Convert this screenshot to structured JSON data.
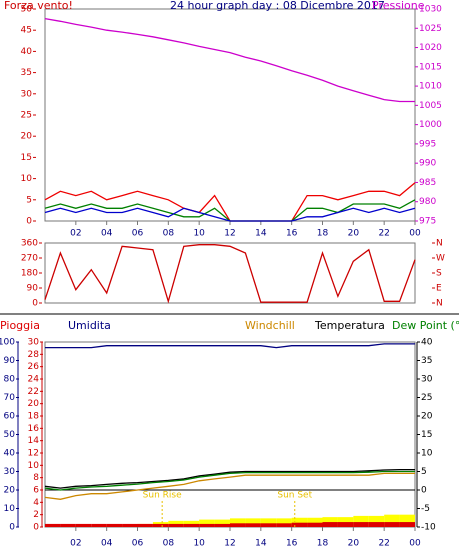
{
  "chart_data": [
    {
      "type": "line",
      "title": "24 hour graph day : 08 Dicembre 2017",
      "ylabel": "Forza vento!",
      "y2label": "Pressione",
      "ylabel_color": "#cc0000",
      "title_color": "#000080",
      "y2label_color": "#cc00cc",
      "ytick_color": "#cc0000",
      "y2tick_color": "#cc00cc",
      "xtick_color": "#000080",
      "x": [
        0,
        1,
        2,
        3,
        4,
        5,
        6,
        7,
        8,
        9,
        10,
        11,
        12,
        13,
        14,
        15,
        16,
        17,
        18,
        19,
        20,
        21,
        22,
        23,
        24
      ],
      "xlim": [
        0,
        24
      ],
      "xticks": [
        {
          "value": 2,
          "label": "02"
        },
        {
          "value": 4,
          "label": "04"
        },
        {
          "value": 6,
          "label": "06"
        },
        {
          "value": 8,
          "label": "08"
        },
        10,
        12,
        14,
        16,
        18,
        20,
        22,
        {
          "value": 24,
          "label": "00"
        }
      ],
      "ylim": [
        0,
        50
      ],
      "yticks": [
        0,
        5,
        10,
        15,
        20,
        25,
        30,
        35,
        40,
        45,
        50
      ],
      "y2lim": [
        975,
        1030
      ],
      "y2ticks": [
        975,
        980,
        985,
        990,
        995,
        1000,
        1005,
        1010,
        1015,
        1020,
        1025,
        1030
      ],
      "series": [
        {
          "color": "#cc00cc",
          "axis": "y2",
          "style": "line",
          "values": [
            1027.5,
            1026.8,
            1026,
            1025.3,
            1024.5,
            1024,
            1023.4,
            1022.8,
            1022,
            1021.2,
            1020.3,
            1019.5,
            1018.7,
            1017.5,
            1016.5,
            1015.3,
            1014,
            1012.8,
            1011.5,
            1010,
            1008.8,
            1007.6,
            1006.5,
            1006,
            1006
          ]
        },
        {
          "color": "#ee0000",
          "style": "line",
          "values": [
            5,
            7,
            6,
            7,
            5,
            6,
            7,
            6,
            5,
            3,
            2,
            6,
            0,
            0,
            0,
            0,
            0,
            6,
            6,
            5,
            6,
            7,
            7,
            6,
            9
          ]
        },
        {
          "color": "#008000",
          "style": "line",
          "values": [
            3,
            4,
            3,
            4,
            3,
            3,
            4,
            3,
            2,
            1,
            1,
            3,
            0,
            0,
            0,
            0,
            0,
            3,
            3,
            2,
            4,
            4,
            4,
            3,
            5
          ]
        },
        {
          "color": "#0000cc",
          "style": "line",
          "values": [
            2,
            3,
            2,
            3,
            2,
            2,
            3,
            2,
            1,
            3,
            2,
            1,
            0,
            0,
            0,
            0,
            0,
            1,
            1,
            2,
            3,
            2,
            3,
            2,
            3
          ]
        }
      ]
    },
    {
      "type": "line",
      "ytick_color": "#cc0000",
      "y2tick_color": "#cc0000",
      "x": [
        0,
        1,
        2,
        3,
        4,
        5,
        6,
        7,
        8,
        9,
        10,
        11,
        12,
        13,
        14,
        15,
        16,
        17,
        18,
        19,
        20,
        21,
        22,
        23,
        24
      ],
      "xlim": [
        0,
        24
      ],
      "ylim": [
        0,
        360
      ],
      "yticks": [
        0,
        90,
        180,
        270,
        360
      ],
      "y2lim": [
        0,
        360
      ],
      "y2ticks": [
        {
          "value": 360,
          "label": "N"
        },
        {
          "value": 270,
          "label": "W"
        },
        {
          "value": 180,
          "label": "S"
        },
        {
          "value": 90,
          "label": "E"
        },
        {
          "value": 0,
          "label": "N"
        }
      ],
      "series": [
        {
          "color": "#cc0000",
          "style": "line",
          "values": [
            20,
            300,
            80,
            200,
            60,
            340,
            330,
            320,
            10,
            340,
            350,
            350,
            340,
            300,
            5,
            5,
            5,
            5,
            300,
            40,
            250,
            320,
            10,
            10,
            260
          ]
        }
      ]
    },
    {
      "type": "line",
      "ytick_color": "#000080",
      "y2tick_color": "#000000",
      "y3tick_color": "#cc0000",
      "xtick_color": "#000080",
      "x": [
        0,
        1,
        2,
        3,
        4,
        5,
        6,
        7,
        8,
        9,
        10,
        11,
        12,
        13,
        14,
        15,
        16,
        17,
        18,
        19,
        20,
        21,
        22,
        23,
        24
      ],
      "xlim": [
        0,
        24
      ],
      "xticks": [
        {
          "value": 2,
          "label": "02"
        },
        {
          "value": 4,
          "label": "04"
        },
        {
          "value": 6,
          "label": "06"
        },
        {
          "value": 8,
          "label": "08"
        },
        10,
        12,
        14,
        16,
        18,
        20,
        22,
        {
          "value": 24,
          "label": "00"
        }
      ],
      "ylim": [
        0,
        100
      ],
      "yticks": [
        0,
        10,
        20,
        30,
        40,
        50,
        60,
        70,
        80,
        90,
        100
      ],
      "y2lim": [
        -10,
        40
      ],
      "y2ticks": [
        -10,
        -5,
        0,
        5,
        10,
        15,
        20,
        25,
        30,
        35,
        40
      ],
      "y3lim": [
        0,
        30
      ],
      "y3ticks": [
        0,
        2,
        4,
        6,
        8,
        10,
        12,
        14,
        16,
        18,
        20,
        22,
        24,
        26,
        28,
        30
      ],
      "annotations": [
        {
          "text": "Sun Rise",
          "x": 7.6
        },
        {
          "text": "Sun Set",
          "x": 16.2
        }
      ],
      "annotation_color": "#e8c000",
      "series": [
        {
          "color": "#ffff00",
          "axis": "y3",
          "style": "bar",
          "values": [
            0,
            0,
            0,
            0,
            0,
            0.3,
            0.5,
            0.8,
            1,
            1,
            1.2,
            1.2,
            1.4,
            1.4,
            1.4,
            1.4,
            1.5,
            1.5,
            1.6,
            1.6,
            1.8,
            1.8,
            2,
            2,
            0
          ]
        },
        {
          "name": "Pioggia",
          "color": "#dd0000",
          "axis": "y3",
          "style": "bar",
          "values": [
            0.5,
            0.5,
            0.5,
            0.5,
            0.5,
            0.5,
            0.5,
            0.5,
            0.5,
            0.5,
            0.5,
            0.5,
            0.6,
            0.6,
            0.6,
            0.6,
            0.7,
            0.7,
            0.8,
            0.8,
            0.8,
            0.8,
            0.8,
            0.8,
            0
          ]
        },
        {
          "name": "Umidita",
          "color": "#000080",
          "style": "line",
          "values": [
            97,
            97,
            97,
            97,
            98,
            98,
            98,
            98,
            98,
            98,
            98,
            98,
            98,
            98,
            98,
            97,
            98,
            98,
            98,
            98,
            98,
            98,
            99,
            99,
            99
          ]
        },
        {
          "name": "Windchill",
          "color": "#cc8800",
          "axis": "y2",
          "style": "line",
          "values": [
            -2,
            -2.5,
            -1.5,
            -1,
            -1,
            -0.5,
            0,
            0.5,
            1,
            1.5,
            2.5,
            3,
            3.5,
            4,
            4,
            4,
            4,
            4,
            4,
            4,
            4,
            4,
            4.5,
            4.5,
            4.5
          ]
        },
        {
          "name": "Temperatura",
          "color": "#000000",
          "axis": "y2",
          "style": "line",
          "values": [
            1,
            0.5,
            1,
            1.2,
            1.5,
            1.8,
            2,
            2.3,
            2.6,
            3,
            3.8,
            4.3,
            4.8,
            5,
            5,
            5,
            5,
            5,
            5,
            5,
            5,
            5.2,
            5.4,
            5.5,
            5.5
          ]
        },
        {
          "name": "Dew Point (°C",
          "color": "#008000",
          "axis": "y2",
          "style": "line",
          "values": [
            0.5,
            0,
            0.5,
            0.8,
            1,
            1.3,
            1.6,
            2,
            2.3,
            2.7,
            3.5,
            4,
            4.5,
            4.7,
            4.7,
            4.7,
            4.7,
            4.7,
            4.7,
            4.7,
            4.7,
            4.8,
            5,
            5,
            5
          ]
        }
      ]
    }
  ]
}
